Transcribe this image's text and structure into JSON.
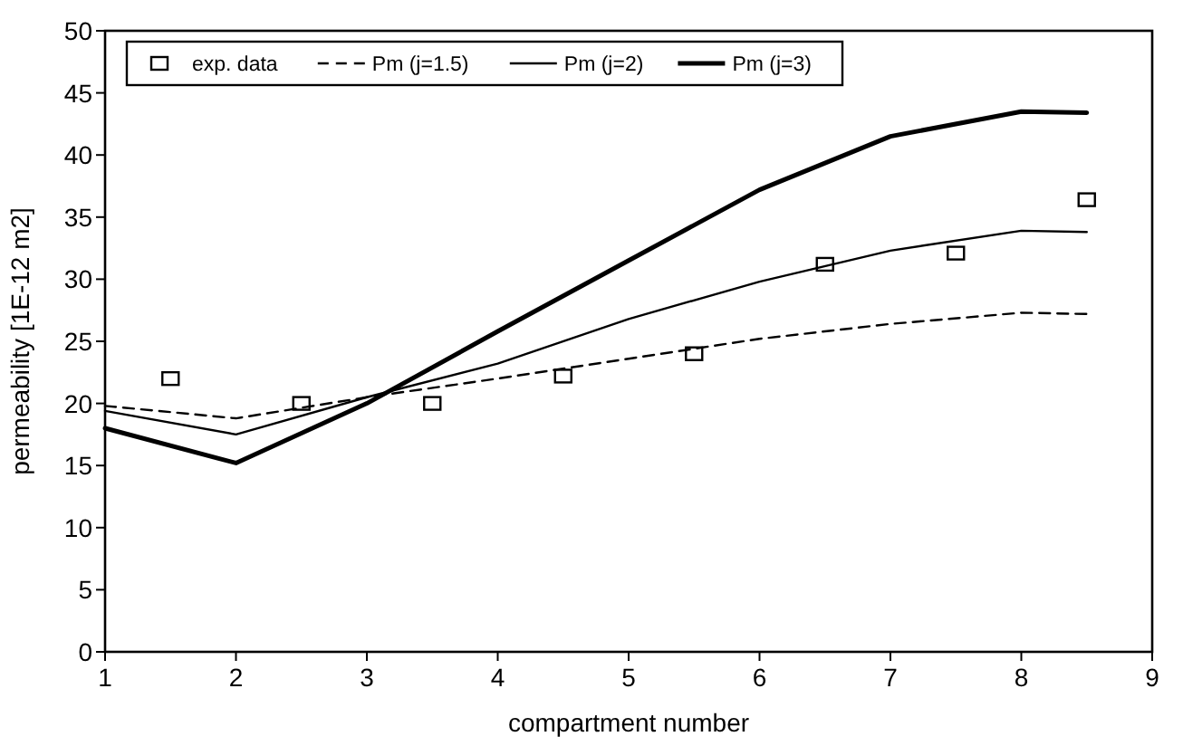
{
  "chart_data": {
    "type": "line",
    "xlabel": "compartment number",
    "ylabel": "permeability [1E-12 m2]",
    "xlim": [
      1,
      9
    ],
    "xticks": [
      1,
      2,
      3,
      4,
      5,
      6,
      7,
      8,
      9
    ],
    "ylim": [
      0,
      50
    ],
    "yticks": [
      0,
      5,
      10,
      15,
      20,
      25,
      30,
      35,
      40,
      45,
      50
    ],
    "grid": false,
    "legend": "top left",
    "series": [
      {
        "name": "exp. data",
        "type": "scatter",
        "marker": "square",
        "color": "#000000",
        "x": [
          1.5,
          2.5,
          3.5,
          4.5,
          5.5,
          6.5,
          7.5,
          8.5
        ],
        "values": [
          22,
          20,
          20,
          22.2,
          24,
          31.2,
          32.1,
          36.4
        ]
      },
      {
        "name": "Pm (j=1.5)",
        "line_style": "dashed",
        "color": "#000000",
        "x": [
          1,
          2,
          3,
          4,
          5,
          6,
          7,
          8,
          8.5
        ],
        "values": [
          19.8,
          18.8,
          20.5,
          22,
          23.6,
          25.2,
          26.4,
          27.3,
          27.2
        ]
      },
      {
        "name": "Pm (j=2)",
        "line_style": "solid",
        "color": "#000000",
        "x": [
          1,
          2,
          3,
          4,
          5,
          6,
          7,
          8,
          8.5
        ],
        "values": [
          19.4,
          17.5,
          20.5,
          23.2,
          26.8,
          29.8,
          32.3,
          33.9,
          33.8
        ]
      },
      {
        "name": "Pm (j=3)",
        "line_style": "solid",
        "color": "#000000",
        "x": [
          1,
          2,
          3,
          4,
          5,
          6,
          7,
          8,
          8.5
        ],
        "values": [
          18,
          15.2,
          20,
          25.8,
          31.5,
          37.2,
          41.5,
          43.5,
          43.4
        ]
      }
    ]
  }
}
